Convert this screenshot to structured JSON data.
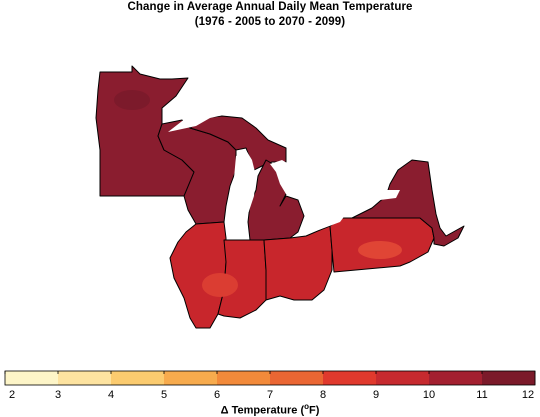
{
  "title_line1": "Change in Average Annual Daily Mean Temperature",
  "title_line2": "(1976 - 2005 to 2070 - 2099)",
  "colorbar": {
    "ticks": [
      "2",
      "3",
      "4",
      "5",
      "6",
      "7",
      "8",
      "9",
      "10",
      "11",
      "12"
    ],
    "colors": [
      "#fdf5c8",
      "#fde3a0",
      "#fbcb6f",
      "#f7ab4d",
      "#f28a3a",
      "#ea6633",
      "#e0392d",
      "#c62a2f",
      "#a32030",
      "#7b1a2a"
    ],
    "label_prefix": "Δ Temperature (",
    "label_unit_sup": "o",
    "label_suffix": "F)"
  },
  "map": {
    "region_colors": {
      "north": "#8a1d2f",
      "central": "#c8262c",
      "south": "#d33a33"
    },
    "lake_color": "#ffffff",
    "border_color": "#000000"
  }
}
